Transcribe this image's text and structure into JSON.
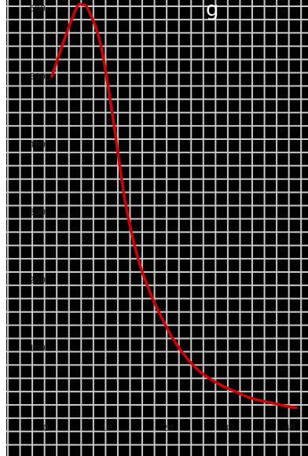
{
  "chart_data": {
    "type": "line",
    "title": "g",
    "xlabel": "",
    "ylabel": "",
    "xlim": [
      0,
      40
    ],
    "ylim": [
      0,
      700
    ],
    "grid": true,
    "x_ticks": [
      0,
      10,
      20,
      30,
      40
    ],
    "y_ticks": [
      100,
      200,
      300,
      400,
      500,
      600
    ],
    "x_tick_labels": [
      "0",
      "10",
      "20",
      "30",
      "40"
    ],
    "y_tick_labels": [
      "100",
      "200",
      "300",
      "400",
      "500",
      "600"
    ],
    "series": [
      {
        "x": [
          0,
          2,
          4,
          5,
          6,
          8,
          10,
          12,
          14,
          16,
          18,
          20,
          22,
          24,
          26,
          28,
          30,
          32,
          34,
          36,
          38,
          40
        ],
        "y": [
          500,
          553,
          600,
          605,
          597,
          546,
          438,
          315,
          235,
          183,
          144,
          111,
          86,
          67,
          54,
          44,
          36,
          28,
          23,
          19,
          15,
          12
        ]
      }
    ]
  },
  "colors": {
    "background": "#000000",
    "grid": "#c8c8c8",
    "line": "#cc0000"
  }
}
